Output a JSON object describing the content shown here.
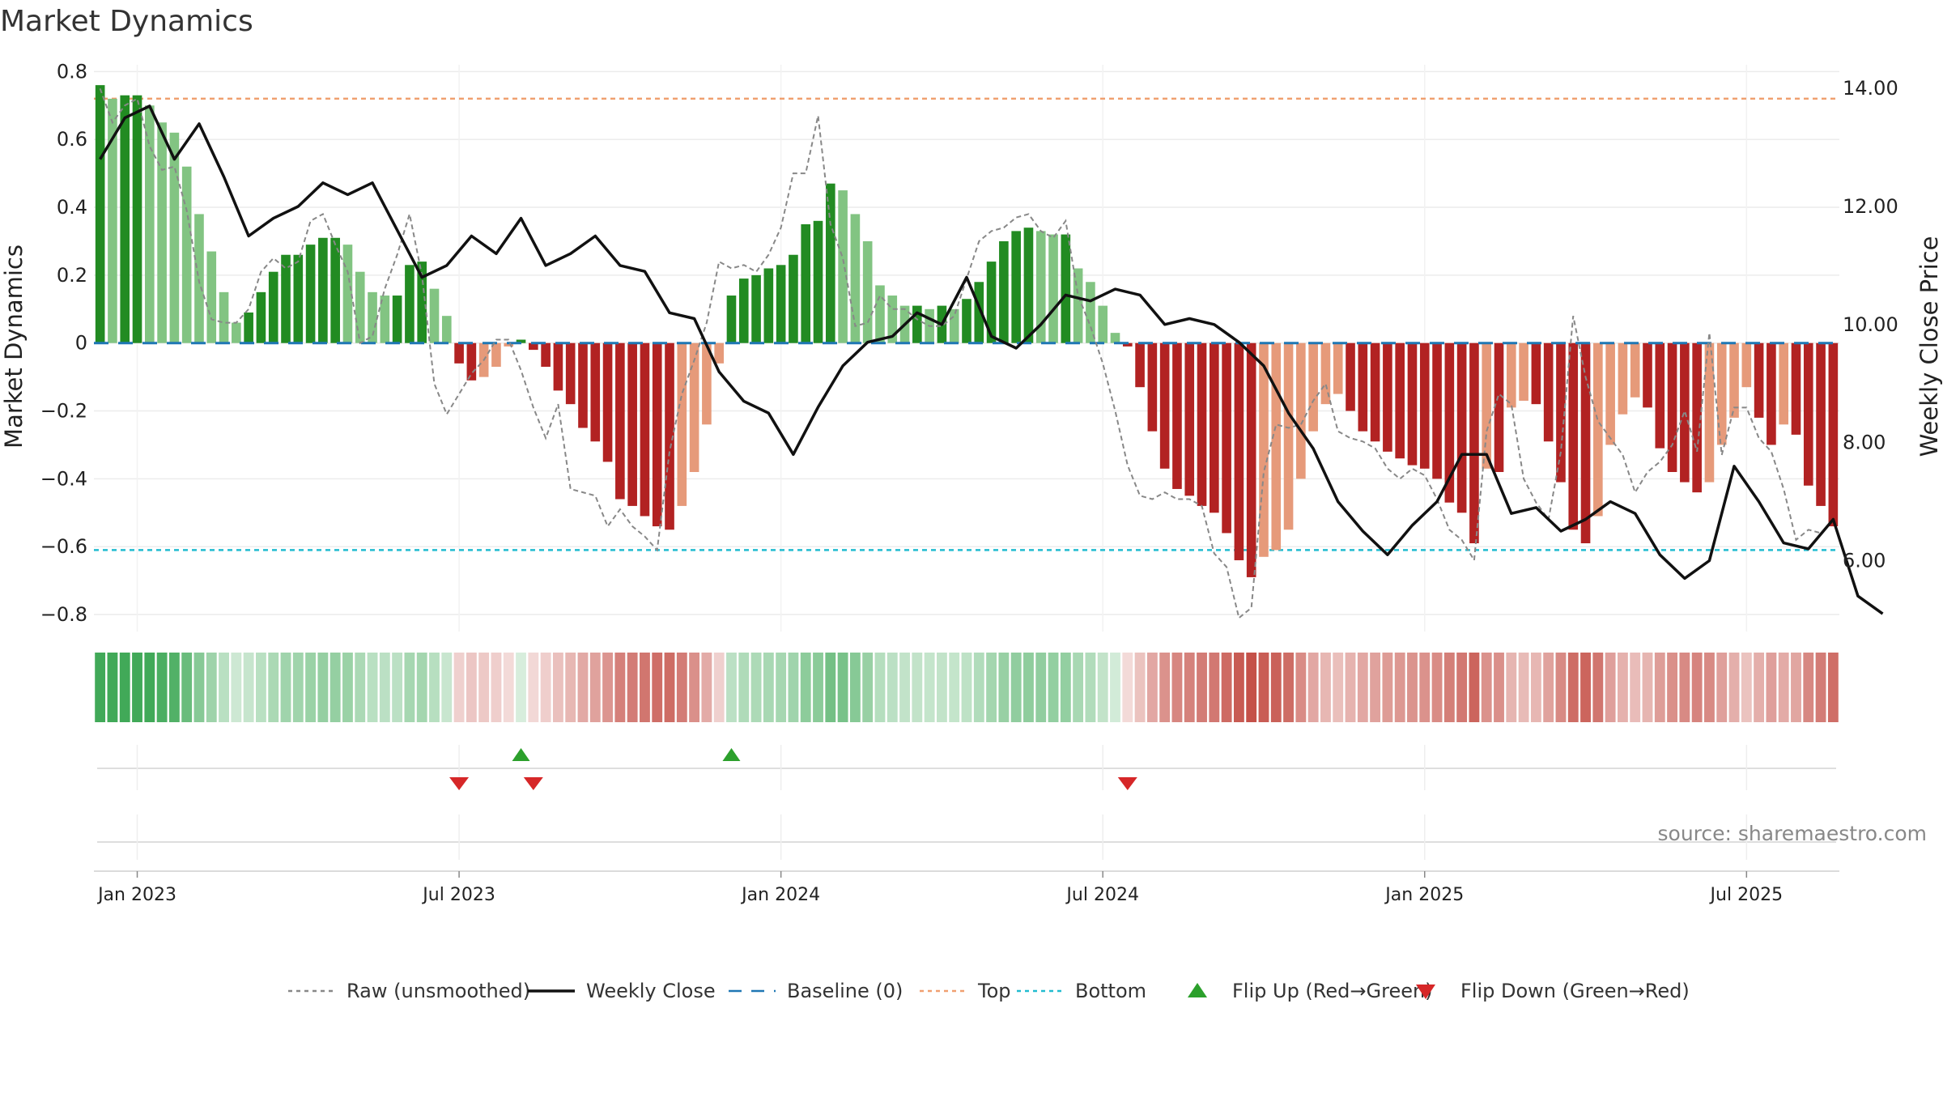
{
  "chart_data": {
    "type": "bar",
    "title": "Market Dynamics",
    "ylabel": "Market Dynamics",
    "y2label": "Weekly Close Price",
    "ylim": [
      -0.85,
      0.82
    ],
    "y2lim": [
      4.8,
      14.4
    ],
    "yticks": [
      0.8,
      0.6,
      0.4,
      0.2,
      0,
      -0.2,
      -0.4,
      -0.6,
      -0.8
    ],
    "ytick_labels": [
      "0.8",
      "0.6",
      "0.4",
      "0.2",
      "0",
      "−0.2",
      "−0.4",
      "−0.6",
      "−0.8"
    ],
    "y2ticks": [
      14,
      12,
      10,
      8,
      6
    ],
    "y2tick_labels": [
      "14.00",
      "12.00",
      "10.00",
      "8.00",
      "6.00"
    ],
    "xticks": [
      {
        "label": "Jan 2023",
        "week": 3
      },
      {
        "label": "Jul 2023",
        "week": 29
      },
      {
        "label": "Jan 2024",
        "week": 55
      },
      {
        "label": "Jul 2024",
        "week": 81
      },
      {
        "label": "Jan 2025",
        "week": 107
      },
      {
        "label": "Jul 2025",
        "week": 133
      }
    ],
    "top_level": 0.72,
    "bottom_level": -0.61,
    "baseline": 0,
    "grid": true,
    "legend_position": "bottom",
    "source": "source: sharemaestro.com",
    "legend": [
      {
        "label": "Raw (unsmoothed)",
        "kind": "dash-line",
        "color": "#888888"
      },
      {
        "label": "Weekly Close",
        "kind": "line",
        "color": "#111111"
      },
      {
        "label": "Baseline (0)",
        "kind": "dash-line",
        "color": "#1f77b4"
      },
      {
        "label": "Top",
        "kind": "dash-line",
        "color": "#f0a070"
      },
      {
        "label": "Bottom",
        "kind": "dash-line",
        "color": "#22bcd0"
      },
      {
        "label": "Flip Up (Red→Green)",
        "kind": "tri-up",
        "color": "#2ca02c"
      },
      {
        "label": "Flip Down (Green→Red)",
        "kind": "tri-down",
        "color": "#d62728"
      }
    ],
    "colors": {
      "up_strong": "#228b22",
      "up_weak": "#82c482",
      "down_strong": "#b22222",
      "down_weak": "#e69a7a",
      "top": "#f0a070",
      "bottom": "#22bcd0",
      "baseline": "#1f77b4",
      "raw": "#888888",
      "close": "#111111",
      "flip_up": "#2ca02c",
      "flip_down": "#d62728"
    },
    "dynamics": [
      0.76,
      0.72,
      0.73,
      0.73,
      0.7,
      0.65,
      0.62,
      0.52,
      0.38,
      0.27,
      0.15,
      0.06,
      0.09,
      0.15,
      0.21,
      0.26,
      0.26,
      0.29,
      0.31,
      0.31,
      0.29,
      0.21,
      0.15,
      0.14,
      0.14,
      0.23,
      0.24,
      0.16,
      0.08,
      -0.06,
      -0.11,
      -0.1,
      -0.07,
      -0.01,
      0.01,
      -0.02,
      -0.07,
      -0.14,
      -0.18,
      -0.25,
      -0.29,
      -0.35,
      -0.46,
      -0.48,
      -0.51,
      -0.54,
      -0.55,
      -0.48,
      -0.38,
      -0.24,
      -0.06,
      0.14,
      0.19,
      0.2,
      0.22,
      0.23,
      0.26,
      0.35,
      0.36,
      0.47,
      0.45,
      0.38,
      0.3,
      0.17,
      0.14,
      0.11,
      0.11,
      0.1,
      0.11,
      0.1,
      0.13,
      0.18,
      0.24,
      0.3,
      0.33,
      0.34,
      0.33,
      0.32,
      0.32,
      0.22,
      0.18,
      0.11,
      0.03,
      -0.01,
      -0.13,
      -0.26,
      -0.37,
      -0.43,
      -0.45,
      -0.48,
      -0.5,
      -0.56,
      -0.64,
      -0.69,
      -0.63,
      -0.61,
      -0.55,
      -0.4,
      -0.26,
      -0.18,
      -0.15,
      -0.2,
      -0.26,
      -0.29,
      -0.32,
      -0.34,
      -0.36,
      -0.37,
      -0.4,
      -0.47,
      -0.5,
      -0.59,
      -0.37,
      -0.38,
      -0.19,
      -0.17,
      -0.18,
      -0.29,
      -0.41,
      -0.55,
      -0.59,
      -0.51,
      -0.3,
      -0.21,
      -0.16,
      -0.19,
      -0.31,
      -0.38,
      -0.41,
      -0.44,
      -0.41,
      -0.3,
      -0.22,
      -0.13,
      -0.22,
      -0.3,
      -0.24,
      -0.27,
      -0.42,
      -0.48,
      -0.54
    ],
    "raw": [
      0.75,
      0.65,
      0.7,
      0.72,
      0.58,
      0.51,
      0.52,
      0.39,
      0.18,
      0.07,
      0.06,
      0.06,
      0.1,
      0.21,
      0.25,
      0.22,
      0.24,
      0.36,
      0.38,
      0.29,
      0.21,
      0.0,
      0.02,
      0.16,
      0.26,
      0.38,
      0.2,
      -0.12,
      -0.21,
      -0.15,
      -0.09,
      -0.05,
      0.01,
      0.01,
      -0.08,
      -0.19,
      -0.28,
      -0.18,
      -0.43,
      -0.44,
      -0.45,
      -0.54,
      -0.49,
      -0.54,
      -0.57,
      -0.61,
      -0.32,
      -0.15,
      -0.05,
      0.06,
      0.24,
      0.22,
      0.23,
      0.21,
      0.26,
      0.34,
      0.5,
      0.5,
      0.67,
      0.35,
      0.25,
      0.05,
      0.06,
      0.14,
      0.1,
      0.1,
      0.07,
      0.05,
      0.05,
      0.08,
      0.19,
      0.3,
      0.33,
      0.34,
      0.37,
      0.38,
      0.33,
      0.31,
      0.36,
      0.14,
      0.05,
      -0.06,
      -0.2,
      -0.36,
      -0.45,
      -0.46,
      -0.44,
      -0.46,
      -0.46,
      -0.48,
      -0.62,
      -0.66,
      -0.81,
      -0.78,
      -0.38,
      -0.24,
      -0.25,
      -0.24,
      -0.17,
      -0.12,
      -0.26,
      -0.28,
      -0.29,
      -0.31,
      -0.37,
      -0.4,
      -0.37,
      -0.39,
      -0.46,
      -0.55,
      -0.58,
      -0.64,
      -0.26,
      -0.15,
      -0.18,
      -0.4,
      -0.47,
      -0.52,
      -0.32,
      0.08,
      -0.1,
      -0.23,
      -0.28,
      -0.33,
      -0.44,
      -0.38,
      -0.35,
      -0.3,
      -0.2,
      -0.32,
      0.03,
      -0.33,
      -0.19,
      -0.19,
      -0.28,
      -0.32,
      -0.43,
      -0.58,
      -0.55,
      -0.56
    ],
    "close_x": [
      0,
      2,
      4,
      6,
      8,
      10,
      12,
      14,
      16,
      18,
      20,
      22,
      24,
      26,
      28,
      30,
      32,
      34,
      36,
      38,
      40,
      42,
      44,
      46,
      48,
      50,
      52,
      54,
      56,
      58,
      60,
      62,
      64,
      66,
      68,
      70,
      72,
      74,
      76,
      78,
      80,
      82,
      84,
      86,
      88,
      90,
      92,
      94,
      96,
      98,
      100,
      102,
      104,
      106,
      108,
      110,
      112,
      114,
      116,
      118,
      120,
      122,
      124,
      126,
      128,
      130,
      132,
      134,
      136,
      138,
      140,
      142,
      144
    ],
    "close": [
      12.8,
      13.5,
      13.7,
      12.8,
      13.4,
      12.5,
      11.5,
      11.8,
      12.0,
      12.4,
      12.2,
      12.4,
      11.6,
      10.8,
      11.0,
      11.5,
      11.2,
      11.8,
      11.0,
      11.2,
      11.5,
      11.0,
      10.9,
      10.2,
      10.1,
      9.2,
      8.7,
      8.5,
      7.8,
      8.6,
      9.3,
      9.7,
      9.8,
      10.2,
      10.0,
      10.8,
      9.8,
      9.6,
      10.0,
      10.5,
      10.4,
      10.6,
      10.5,
      10.0,
      10.1,
      10.0,
      9.7,
      9.3,
      8.5,
      7.9,
      7.0,
      6.5,
      6.1,
      6.6,
      7.0,
      7.8,
      7.8,
      6.8,
      6.9,
      6.5,
      6.7,
      7.0,
      6.8,
      6.1,
      5.7,
      6.0,
      7.6,
      7.0,
      6.3,
      6.2,
      6.7,
      5.4,
      5.1
    ]
  }
}
